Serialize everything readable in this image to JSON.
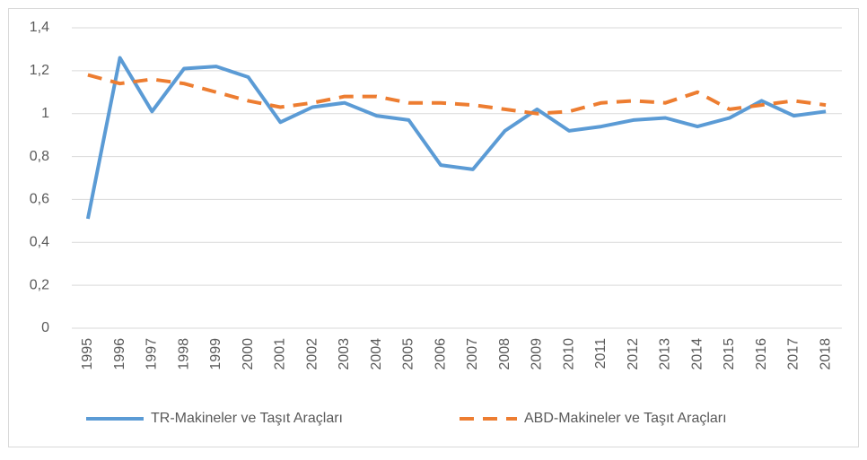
{
  "chart_data": {
    "type": "line",
    "categories": [
      "1995",
      "1996",
      "1997",
      "1998",
      "1999",
      "2000",
      "2001",
      "2002",
      "2003",
      "2004",
      "2005",
      "2006",
      "2007",
      "2008",
      "2009",
      "2010",
      "2011",
      "2012",
      "2013",
      "2014",
      "2015",
      "2016",
      "2017",
      "2018"
    ],
    "series": [
      {
        "name": "TR-Makineler ve Taşıt Araçları",
        "color": "#5b9bd5",
        "dash": "solid",
        "values": [
          0.51,
          1.26,
          1.01,
          1.21,
          1.22,
          1.17,
          0.96,
          1.03,
          1.05,
          0.99,
          0.97,
          0.76,
          0.74,
          0.92,
          1.02,
          0.92,
          0.94,
          0.97,
          0.98,
          0.94,
          0.98,
          1.06,
          0.99,
          1.01
        ]
      },
      {
        "name": "ABD-Makineler ve Taşıt Araçları",
        "color": "#ed7d31",
        "dash": "dashed",
        "values": [
          1.18,
          1.14,
          1.16,
          1.14,
          1.1,
          1.06,
          1.03,
          1.05,
          1.08,
          1.08,
          1.05,
          1.05,
          1.04,
          1.02,
          1.0,
          1.01,
          1.05,
          1.06,
          1.05,
          1.1,
          1.02,
          1.04,
          1.06,
          1.04
        ]
      }
    ],
    "ylim": [
      0,
      1.4
    ],
    "yticks": [
      0,
      {
        "value": 0.2,
        "label": "0,2"
      },
      {
        "value": 0.4,
        "label": "0,4"
      },
      {
        "value": 0.6,
        "label": "0,6"
      },
      {
        "value": 0.8,
        "label": "0,8"
      },
      1,
      {
        "value": 1.2,
        "label": "1,2"
      },
      {
        "value": 1.4,
        "label": "1,4"
      }
    ],
    "grid": true,
    "legend": "bottom"
  }
}
